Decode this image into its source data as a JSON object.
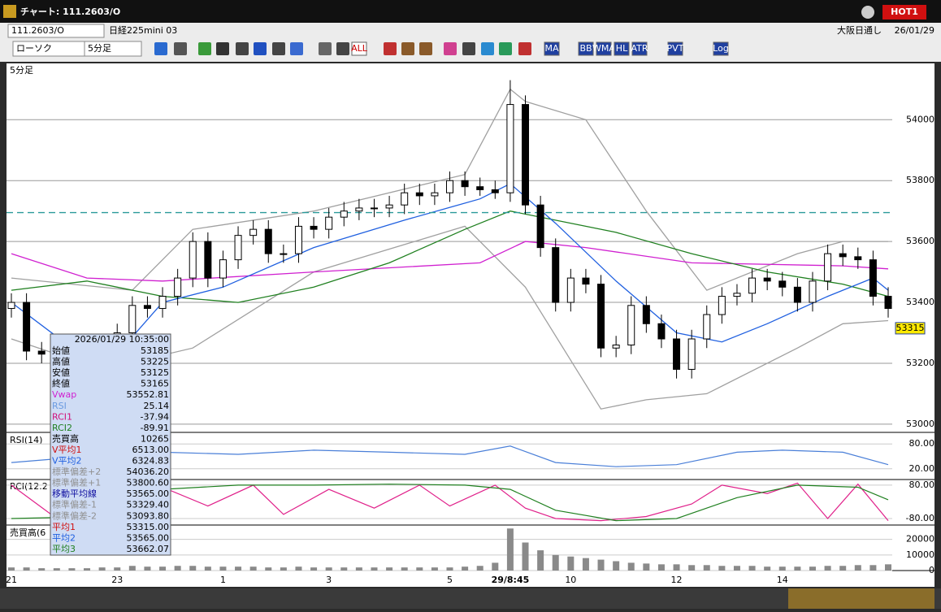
{
  "window": {
    "title": "チャート: 111.2603/O",
    "hot": "HOT1"
  },
  "header": {
    "symbol": "111.2603/O",
    "name": "日経225mini 03",
    "market": "大阪日通し",
    "date": "26/01/29"
  },
  "toolbar": {
    "chart_type": "ローソク",
    "interval": "5分足",
    "buttons": [
      "ALL",
      "MA",
      "BB",
      "WMA",
      "HL",
      "ATR",
      "PVT",
      "Log"
    ]
  },
  "chart_data": [
    {
      "type": "candlestick",
      "label": "5分足",
      "categories": [
        "21",
        null,
        null,
        null,
        null,
        null,
        null,
        "23",
        null,
        null,
        null,
        null,
        null,
        null,
        "1",
        null,
        null,
        null,
        null,
        null,
        null,
        "3",
        null,
        null,
        null,
        null,
        null,
        null,
        null,
        "5",
        null,
        null,
        null,
        "29/8:45",
        null,
        null,
        null,
        "10",
        null,
        null,
        null,
        null,
        null,
        null,
        "12",
        null,
        null,
        null,
        null,
        null,
        null,
        "14",
        null,
        null,
        null,
        null,
        null,
        null,
        null
      ],
      "open": [
        53380,
        53400,
        53240,
        53230,
        53240,
        53230,
        53240,
        53250,
        53300,
        53390,
        53380,
        53420,
        53480,
        53600,
        53480,
        53540,
        53620,
        53640,
        53560,
        53560,
        53650,
        53640,
        53680,
        53700,
        53710,
        53710,
        53720,
        53760,
        53750,
        53760,
        53800,
        53780,
        53770,
        53760,
        54050,
        53720,
        53580,
        53400,
        53480,
        53460,
        53250,
        53260,
        53390,
        53330,
        53280,
        53180,
        53280,
        53360,
        53420,
        53430,
        53480,
        53470,
        53450,
        53400,
        53470,
        53560,
        53550,
        53540,
        53420
      ],
      "high": [
        53430,
        53430,
        53270,
        53270,
        53270,
        53270,
        53280,
        53330,
        53420,
        53420,
        53450,
        53510,
        53630,
        53630,
        53570,
        53650,
        53670,
        53670,
        53590,
        53680,
        53680,
        53710,
        53730,
        53740,
        53740,
        53750,
        53790,
        53790,
        53790,
        53830,
        53830,
        53810,
        53800,
        54130,
        54080,
        53750,
        53610,
        53510,
        53510,
        53490,
        53290,
        53420,
        53420,
        53360,
        53310,
        53310,
        53390,
        53450,
        53460,
        53510,
        53510,
        53500,
        53480,
        53500,
        53590,
        53590,
        53580,
        53570,
        53450
      ],
      "low": [
        53350,
        53210,
        53200,
        53200,
        53200,
        53200,
        53210,
        53220,
        53270,
        53350,
        53350,
        53390,
        53450,
        53450,
        53450,
        53510,
        53590,
        53530,
        53530,
        53530,
        53610,
        53610,
        53650,
        53670,
        53680,
        53680,
        53690,
        53720,
        53720,
        53730,
        53750,
        53750,
        53740,
        53730,
        53690,
        53550,
        53370,
        53370,
        53430,
        53220,
        53220,
        53230,
        53300,
        53250,
        53150,
        53150,
        53250,
        53330,
        53390,
        53400,
        53440,
        53420,
        53370,
        53370,
        53440,
        53520,
        53510,
        53390,
        53350
      ],
      "close": [
        53400,
        53240,
        53230,
        53240,
        53230,
        53240,
        53250,
        53300,
        53390,
        53380,
        53420,
        53480,
        53600,
        53480,
        53540,
        53620,
        53640,
        53560,
        53560,
        53650,
        53640,
        53680,
        53700,
        53710,
        53710,
        53720,
        53760,
        53750,
        53760,
        53800,
        53780,
        53770,
        53760,
        54050,
        53720,
        53580,
        53400,
        53480,
        53460,
        53250,
        53260,
        53390,
        53330,
        53280,
        53180,
        53280,
        53360,
        53420,
        53430,
        53480,
        53470,
        53450,
        53400,
        53470,
        53560,
        53550,
        53540,
        53420,
        53380
      ],
      "up_color": "#ffffff",
      "down_color": "#000000",
      "lines": [
        {
          "color": "#a0a0a0",
          "x": [
            0,
            8,
            12,
            20,
            30,
            33,
            34,
            38,
            42,
            46,
            52,
            55,
            58
          ],
          "values": [
            53480,
            53440,
            53640,
            53700,
            53820,
            54100,
            54060,
            54000,
            53700,
            53440,
            53560,
            53600,
            53600
          ]
        },
        {
          "color": "#a0a0a0",
          "x": [
            0,
            6,
            12,
            20,
            30,
            34,
            39,
            42,
            46,
            52,
            55,
            58
          ],
          "values": [
            53280,
            53180,
            53250,
            53500,
            53650,
            53450,
            53050,
            53080,
            53100,
            53250,
            53330,
            53340
          ]
        },
        {
          "color": "#d020d0",
          "x": [
            0,
            5,
            10,
            20,
            31,
            34,
            38,
            45,
            55,
            58
          ],
          "values": [
            53560,
            53480,
            53470,
            53500,
            53530,
            53600,
            53580,
            53530,
            53520,
            53510
          ]
        },
        {
          "color": "#208020",
          "x": [
            0,
            5,
            10,
            15,
            20,
            25,
            30,
            33,
            40,
            45,
            50,
            55,
            58
          ],
          "values": [
            53440,
            53470,
            53420,
            53400,
            53450,
            53530,
            53640,
            53700,
            53630,
            53560,
            53500,
            53460,
            53420
          ]
        },
        {
          "color": "#2060e0",
          "x": [
            0,
            4,
            7,
            10,
            14,
            20,
            26,
            31,
            33,
            36,
            40,
            44,
            47,
            50,
            54,
            57,
            58
          ],
          "values": [
            53400,
            53250,
            53230,
            53400,
            53450,
            53580,
            53670,
            53740,
            53790,
            53660,
            53470,
            53300,
            53270,
            53330,
            53420,
            53480,
            53440
          ]
        }
      ],
      "reference_line": 53695,
      "current_price": 53315,
      "ylim": [
        52973,
        54185
      ],
      "yticks": [
        53000,
        53200,
        53400,
        53600,
        53800,
        54000
      ]
    },
    {
      "type": "line",
      "label": "RSI(14)",
      "series": [
        {
          "color": "#4a7fd8",
          "x": [
            0,
            5,
            10,
            15,
            20,
            25,
            30,
            33,
            36,
            40,
            44,
            48,
            51,
            55,
            58
          ],
          "values": [
            35,
            50,
            60,
            55,
            65,
            60,
            55,
            75,
            35,
            25,
            30,
            60,
            65,
            60,
            30
          ]
        }
      ],
      "ylim": [
        -6,
        106
      ],
      "yticks": [
        {
          "value": 80,
          "label": "80.00"
        },
        {
          "value": 20,
          "label": "20.00"
        }
      ]
    },
    {
      "type": "line",
      "label": "RCI(12.2",
      "series": [
        {
          "color": "#e0208a",
          "x": [
            0,
            3,
            7,
            10,
            13,
            16,
            18,
            21,
            24,
            27,
            29,
            32,
            34,
            36,
            39,
            42,
            45,
            47,
            50,
            52,
            54,
            56,
            58
          ],
          "values": [
            80,
            -80,
            80,
            70,
            -20,
            80,
            -60,
            60,
            -30,
            80,
            -20,
            80,
            -30,
            -80,
            -90,
            -70,
            -10,
            80,
            40,
            90,
            -80,
            85,
            -90
          ]
        },
        {
          "color": "#208020",
          "x": [
            0,
            6,
            10,
            15,
            20,
            25,
            30,
            33,
            36,
            40,
            44,
            48,
            52,
            56,
            58
          ],
          "values": [
            -80,
            -70,
            60,
            80,
            80,
            85,
            80,
            60,
            -40,
            -90,
            -80,
            20,
            80,
            70,
            10
          ]
        }
      ],
      "ylim": [
        -111,
        107
      ],
      "yticks": [
        {
          "value": 80,
          "label": "80.00"
        },
        {
          "value": -80,
          "label": "-80.00"
        }
      ]
    },
    {
      "type": "bar",
      "label": "売買高(6",
      "color": "#8a8a8a",
      "values": [
        2000,
        2000,
        1500,
        1500,
        1500,
        1500,
        2000,
        2000,
        3000,
        2500,
        2500,
        3000,
        3000,
        2500,
        2500,
        2500,
        2500,
        2000,
        2000,
        2500,
        2000,
        2000,
        2000,
        2000,
        2000,
        2000,
        2000,
        2000,
        2000,
        2000,
        2500,
        3000,
        5000,
        27000,
        18000,
        13000,
        10000,
        9000,
        8000,
        7000,
        6000,
        5000,
        4500,
        4000,
        4000,
        3500,
        3500,
        3000,
        3000,
        3000,
        2500,
        2500,
        2500,
        2500,
        3000,
        3000,
        3500,
        3500,
        4000
      ],
      "ylim": [
        0,
        28700
      ],
      "yticks": [
        0,
        10000,
        20000
      ]
    }
  ],
  "info_box": {
    "datetime": "2026/01/29 10:35:00",
    "rows": [
      {
        "label": "始値",
        "value": "53185",
        "color": "#000000"
      },
      {
        "label": "高値",
        "value": "53225",
        "color": "#000000"
      },
      {
        "label": "安値",
        "value": "53125",
        "color": "#000000"
      },
      {
        "label": "終値",
        "value": "53165",
        "color": "#000000"
      },
      {
        "label": "Vwap",
        "value": "53552.81",
        "color": "#d020d0"
      },
      {
        "label": "RSI",
        "value": "25.14",
        "color": "#6a9ae0"
      },
      {
        "label": "RCI1",
        "value": "-37.94",
        "color": "#d0107a"
      },
      {
        "label": "RCI2",
        "value": "-89.91",
        "color": "#208020"
      },
      {
        "label": "売買高",
        "value": "10265",
        "color": "#000000"
      },
      {
        "label": "V平均1",
        "value": "6513.00",
        "color": "#d01010"
      },
      {
        "label": "V平均2",
        "value": "6324.83",
        "color": "#2060e0"
      },
      {
        "label": "標準偏差+2",
        "value": "54036.20",
        "color": "#909090"
      },
      {
        "label": "標準偏差+1",
        "value": "53800.60",
        "color": "#909090"
      },
      {
        "label": "移動平均線",
        "value": "53565.00",
        "color": "#1010a0"
      },
      {
        "label": "標準偏差-1",
        "value": "53329.40",
        "color": "#909090"
      },
      {
        "label": "標準偏差-2",
        "value": "53093.80",
        "color": "#909090"
      },
      {
        "label": "平均1",
        "value": "53315.00",
        "color": "#d01010"
      },
      {
        "label": "平均2",
        "value": "53565.00",
        "color": "#2060e0"
      },
      {
        "label": "平均3",
        "value": "53662.07",
        "color": "#208020"
      }
    ]
  }
}
